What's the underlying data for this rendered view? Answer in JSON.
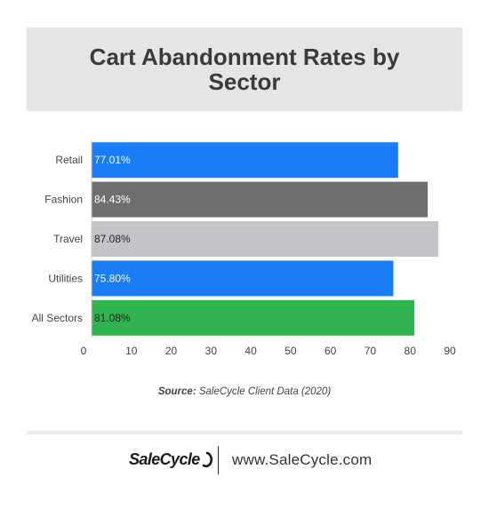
{
  "title": "Cart Abandonment Rates by Sector",
  "source_prefix": "Source:",
  "source_text": "SaleCycle Client Data (2020)",
  "footer": {
    "logo_text": "SaleCycle",
    "website": "www.SaleCycle.com"
  },
  "chart_data": {
    "type": "bar",
    "orientation": "horizontal",
    "title": "Cart Abandonment Rates by Sector",
    "categories": [
      "Retail",
      "Fashion",
      "Travel",
      "Utilities",
      "All Sectors"
    ],
    "values": [
      77.01,
      84.43,
      87.08,
      75.8,
      81.08
    ],
    "value_labels": [
      "77.01%",
      "84.43%",
      "87.08%",
      "75.80%",
      "81.08%"
    ],
    "bar_colors": [
      "#1a7df5",
      "#6e6e6e",
      "#c4c4c8",
      "#1a7df5",
      "#31b34f"
    ],
    "label_colors": [
      "#ffffff",
      "#ffffff",
      "#222222",
      "#ffffff",
      "#222222"
    ],
    "xlim": [
      0,
      90
    ],
    "ticks": [
      0,
      10,
      20,
      30,
      40,
      50,
      60,
      70,
      80,
      90
    ],
    "xlabel": "",
    "ylabel": "",
    "grid": false,
    "legend": "none"
  }
}
